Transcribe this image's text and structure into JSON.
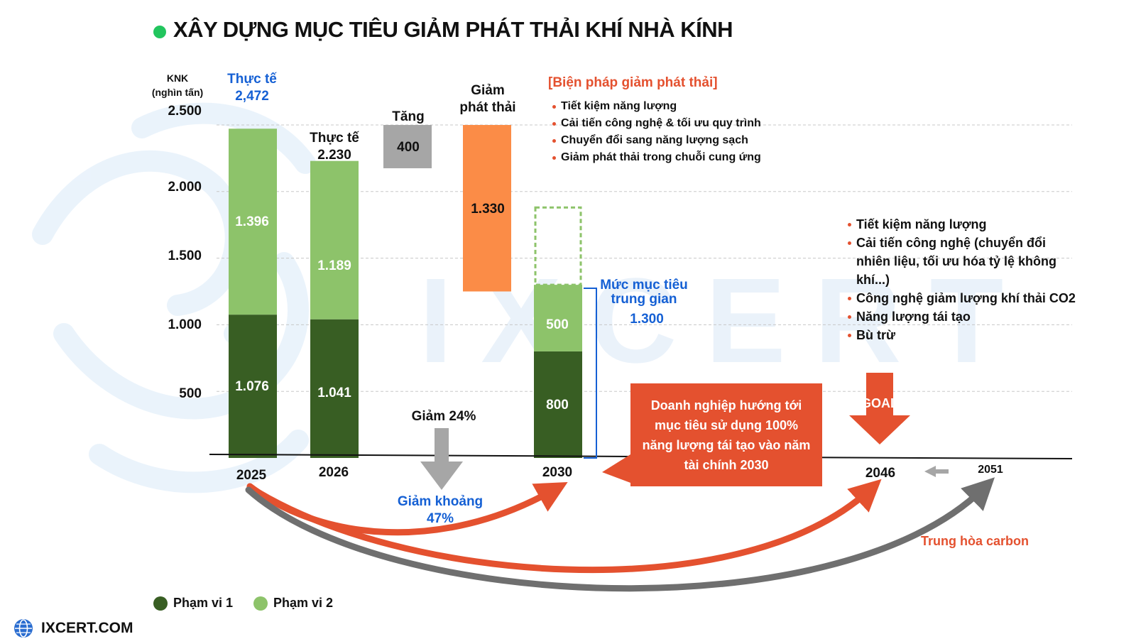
{
  "title": "XÂY DỰNG MỤC TIÊU GIẢM PHÁT THẢI KHÍ NHÀ KÍNH",
  "watermark": "IXCERT",
  "colors": {
    "scope1": "#385e23",
    "scope2": "#8dc36a",
    "increase": "#a6a6a6",
    "reduction": "#fb8c47",
    "accent": "#e4512f",
    "blue": "#1560d4",
    "title_dot": "#22c55e"
  },
  "chart_data": {
    "type": "bar",
    "stacked": true,
    "unit_label": [
      "KNK",
      "(nghìn tấn)"
    ],
    "yticks": [
      "500",
      "1.000",
      "1.500",
      "2.000",
      "2.500"
    ],
    "ylim": [
      0,
      2500
    ],
    "grid": true,
    "categories": [
      "2025",
      "2026",
      "2030"
    ],
    "series": [
      {
        "name": "Phạm vi 1",
        "values": [
          1076,
          1041,
          800
        ],
        "labels": [
          "1.076",
          "1.041",
          "800"
        ]
      },
      {
        "name": "Phạm vi 2",
        "values": [
          1396,
          1189,
          500
        ],
        "labels": [
          "1.396",
          "1.189",
          "500"
        ]
      }
    ],
    "totals": [
      {
        "line1": "Thực tế",
        "line2": "2,472"
      },
      {
        "line1": "Thực tế",
        "line2": "2.230"
      }
    ],
    "increase": {
      "label": "Tăng",
      "value": 400,
      "value_label": "400",
      "range": [
        2175,
        2500
      ]
    },
    "reduction": {
      "label_line1": "Giảm",
      "label_line2": "phát thải",
      "value": 1330,
      "value_label": "1.330",
      "range": [
        1250,
        2500
      ]
    },
    "target_2030": {
      "label_line1": "Mức mục tiêu",
      "label_line2": "trung gian",
      "value_label": "1.300",
      "value": 1300,
      "dotted_top": 1880
    },
    "reduce_24": "Giảm 24%",
    "reduce_47": {
      "line1": "Giảm khoảng",
      "line2": "47%"
    },
    "years_extra": [
      "2046",
      "2051"
    ]
  },
  "measures": {
    "title": "[Biện pháp giảm phát thải]",
    "items": [
      "Tiết kiệm năng lượng",
      "Cải tiến công nghệ & tối ưu quy trình",
      "Chuyển đổi sang năng lượng sạch",
      "Giảm phát thải trong chuỗi cung ứng"
    ]
  },
  "long_term_measures": [
    "Tiết kiệm năng lượng",
    "Cải tiến công nghệ (chuyển đổi nhiên liệu, tối ưu hóa tỷ lệ không khí...)",
    "Công nghệ giảm lượng khí thải CO2",
    "Năng lượng tái tạo",
    "Bù trừ"
  ],
  "callout": [
    "Doanh nghiệp hướng tới",
    "mục tiêu sử dụng 100%",
    "năng lượng tái tạo vào năm",
    "tài chính 2030"
  ],
  "goal": "GOAL",
  "carbon_neutral": "Trung hòa carbon",
  "legend": [
    {
      "label": "Phạm vi 1",
      "color": "#385e23"
    },
    {
      "label": "Phạm vi 2",
      "color": "#8dc36a"
    }
  ],
  "brand": "IXCERT.COM"
}
